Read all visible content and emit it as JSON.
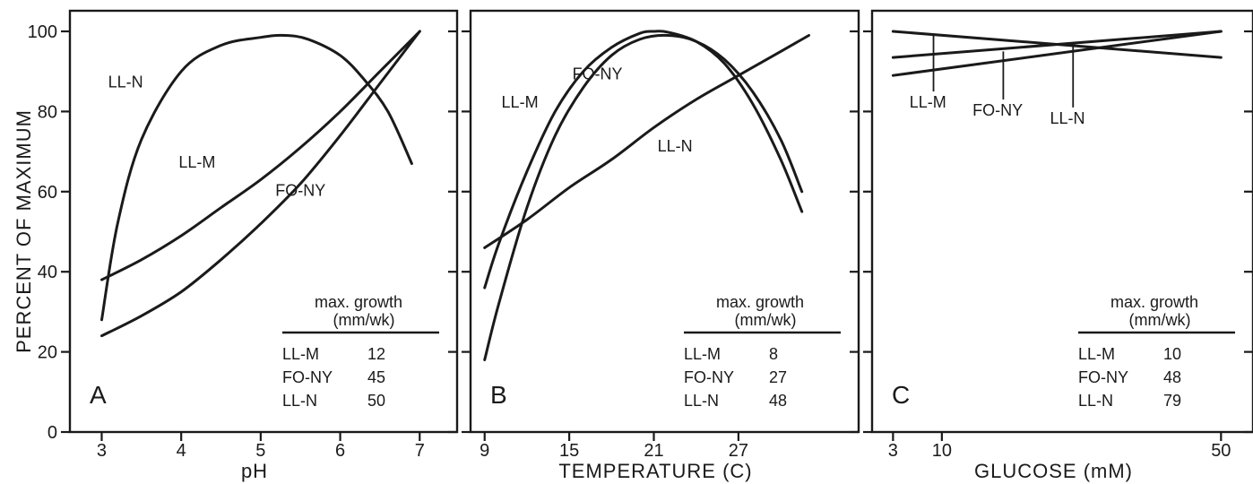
{
  "ylabel": "PERCENT OF MAXIMUM",
  "legend_title": "max. growth",
  "legend_unit": "(mm/wk)",
  "chart_data": [
    {
      "type": "line",
      "panel": "A",
      "xlabel": "pH",
      "ylabel": "PERCENT OF MAXIMUM",
      "xlim": [
        2.6,
        7.2
      ],
      "ylim": [
        0,
        100
      ],
      "xticks": [
        3,
        4,
        5,
        6,
        7
      ],
      "yticks": [
        0,
        20,
        40,
        60,
        80,
        100
      ],
      "series": [
        {
          "name": "LL-N",
          "x": [
            3,
            3.2,
            3.5,
            4,
            4.5,
            5,
            5.3,
            5.6,
            6,
            6.3,
            6.6,
            6.9
          ],
          "y": [
            28,
            52,
            73,
            90,
            96.5,
            98.5,
            99,
            98,
            94,
            88,
            80,
            67
          ]
        },
        {
          "name": "LL-M",
          "x": [
            3,
            3.5,
            4,
            4.5,
            5,
            5.5,
            6,
            6.5,
            7
          ],
          "y": [
            38,
            43,
            49,
            56,
            63,
            71,
            80,
            90,
            100
          ]
        },
        {
          "name": "FO-NY",
          "x": [
            3,
            3.5,
            4,
            4.5,
            5,
            5.5,
            6,
            6.5,
            7
          ],
          "y": [
            24,
            29,
            35,
            43,
            52,
            62,
            74,
            87,
            100
          ]
        }
      ],
      "curve_labels": [
        {
          "name": "LL-N",
          "x": 3.3,
          "y": 86
        },
        {
          "name": "LL-M",
          "x": 4.2,
          "y": 66
        },
        {
          "name": "FO-NY",
          "x": 5.5,
          "y": 59
        }
      ],
      "legend_rows": [
        [
          "LL-M",
          "12"
        ],
        [
          "FO-NY",
          "45"
        ],
        [
          "LL-N",
          "50"
        ]
      ]
    },
    {
      "type": "line",
      "panel": "B",
      "xlabel": "TEMPERATURE (C)",
      "ylabel": "PERCENT OF MAXIMUM",
      "xlim": [
        8,
        34
      ],
      "ylim": [
        0,
        100
      ],
      "xticks": [
        9,
        15,
        21,
        27
      ],
      "yticks": [
        0,
        20,
        40,
        60,
        80,
        100
      ],
      "series": [
        {
          "name": "LL-M",
          "x": [
            9,
            10,
            12,
            14,
            16,
            18,
            20,
            21,
            22,
            24,
            26,
            28,
            30,
            31.5
          ],
          "y": [
            36,
            47,
            65,
            80,
            90,
            96,
            99.5,
            100,
            99.8,
            97.5,
            92,
            82,
            68,
            55
          ]
        },
        {
          "name": "FO-NY",
          "x": [
            9,
            10,
            12,
            14,
            16,
            18,
            20,
            22,
            24,
            26,
            28,
            30,
            31.5
          ],
          "y": [
            18,
            32,
            56,
            74,
            86,
            94,
            98,
            99,
            97.5,
            93,
            85,
            73,
            60
          ]
        },
        {
          "name": "LL-N",
          "x": [
            9,
            12,
            15,
            18,
            21,
            24,
            27,
            30,
            32
          ],
          "y": [
            46,
            53,
            61,
            68,
            76,
            83,
            89,
            95,
            99
          ]
        }
      ],
      "curve_labels": [
        {
          "name": "LL-M",
          "x": 11.5,
          "y": 81
        },
        {
          "name": "FO-NY",
          "x": 17,
          "y": 88
        },
        {
          "name": "LL-N",
          "x": 22.5,
          "y": 70
        }
      ],
      "legend_rows": [
        [
          "LL-M",
          "8"
        ],
        [
          "FO-NY",
          "27"
        ],
        [
          "LL-N",
          "48"
        ]
      ]
    },
    {
      "type": "line",
      "panel": "C",
      "xlabel": "GLUCOSE (mM)",
      "ylabel": "PERCENT OF MAXIMUM",
      "xlim": [
        0,
        51.5
      ],
      "ylim": [
        0,
        100
      ],
      "xticks": [
        3,
        10,
        50
      ],
      "yticks": [
        0,
        20,
        40,
        60,
        80,
        100
      ],
      "series": [
        {
          "name": "LL-M",
          "x": [
            3,
            50
          ],
          "y": [
            100,
            93.5
          ]
        },
        {
          "name": "FO-NY",
          "x": [
            3,
            50
          ],
          "y": [
            93.5,
            100
          ]
        },
        {
          "name": "LL-N",
          "x": [
            3,
            50
          ],
          "y": [
            89,
            100
          ]
        }
      ],
      "curve_labels": [
        {
          "name": "LL-M",
          "x": 8,
          "y": 81,
          "leader_x": 8.8,
          "leader_top": 99.3,
          "leader_bottom": 85
        },
        {
          "name": "FO-NY",
          "x": 18,
          "y": 79,
          "leader_x": 18.8,
          "leader_top": 95,
          "leader_bottom": 83
        },
        {
          "name": "LL-N",
          "x": 28,
          "y": 77,
          "leader_x": 28.8,
          "leader_top": 96.5,
          "leader_bottom": 81
        }
      ],
      "legend_rows": [
        [
          "LL-M",
          "10"
        ],
        [
          "FO-NY",
          "48"
        ],
        [
          "LL-N",
          "79"
        ]
      ]
    }
  ]
}
